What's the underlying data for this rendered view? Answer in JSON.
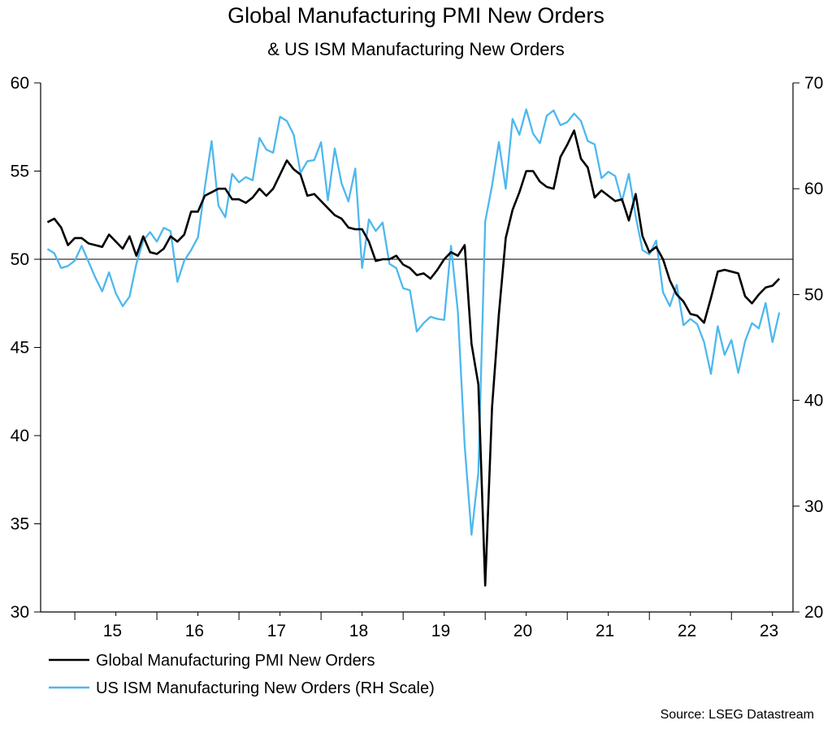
{
  "chart_data": {
    "type": "line",
    "title": "Global Manufacturing PMI New Orders",
    "subtitle": "& US ISM Manufacturing New Orders",
    "source": "Source: LSEG Datastream",
    "x_labels": [
      "15",
      "16",
      "17",
      "18",
      "19",
      "20",
      "21",
      "22",
      "23"
    ],
    "x_start": "2014-09",
    "y_left": {
      "min": 30,
      "max": 60,
      "ticks": [
        30,
        35,
        40,
        45,
        50,
        55,
        60
      ]
    },
    "y_right": {
      "min": 20,
      "max": 70,
      "ticks": [
        20,
        30,
        40,
        50,
        60,
        70
      ]
    },
    "reference_line": 50,
    "legend_position": "bottom-left",
    "series": [
      {
        "name": "Global Manufacturing PMI New Orders",
        "axis": "left",
        "color": "#000000",
        "values": [
          52.1,
          52.3,
          51.8,
          50.8,
          51.2,
          51.2,
          50.9,
          50.8,
          50.7,
          51.4,
          51.0,
          50.6,
          51.3,
          50.2,
          51.3,
          50.4,
          50.3,
          50.6,
          51.3,
          51.0,
          51.4,
          52.7,
          52.7,
          53.6,
          53.8,
          54.0,
          54.0,
          53.4,
          53.4,
          53.2,
          53.5,
          54.0,
          53.6,
          54.0,
          54.8,
          55.6,
          55.1,
          54.8,
          53.6,
          53.7,
          53.3,
          52.9,
          52.5,
          52.3,
          51.8,
          51.7,
          51.7,
          51.0,
          49.9,
          50.0,
          50.0,
          50.2,
          49.7,
          49.5,
          49.1,
          49.2,
          48.9,
          49.4,
          50.0,
          50.4,
          50.2,
          50.8,
          45.2,
          42.9,
          31.5,
          41.6,
          46.9,
          51.2,
          52.8,
          53.8,
          55.0,
          55.0,
          54.4,
          54.1,
          54.0,
          55.8,
          56.5,
          57.3,
          55.7,
          55.2,
          53.5,
          53.9,
          53.6,
          53.3,
          53.4,
          52.2,
          53.7,
          51.3,
          50.4,
          50.7,
          50.0,
          48.8,
          48.0,
          47.6,
          46.9,
          46.8,
          46.4,
          47.8,
          49.3,
          49.4,
          49.3,
          49.2,
          47.9,
          47.5,
          48.0,
          48.4,
          48.5,
          48.9
        ]
      },
      {
        "name": "US ISM Manufacturing New Orders (RH Scale)",
        "axis": "right",
        "color": "#4db8ee",
        "values": [
          54.3,
          53.9,
          52.5,
          52.7,
          53.2,
          54.6,
          53.1,
          51.6,
          50.3,
          52.1,
          50.1,
          48.9,
          49.8,
          52.9,
          55.1,
          55.9,
          55.0,
          56.3,
          56.0,
          51.2,
          53.2,
          54.2,
          55.4,
          60.1,
          64.5,
          58.4,
          57.3,
          61.4,
          60.6,
          61.1,
          60.8,
          64.8,
          63.7,
          63.4,
          66.8,
          66.4,
          65.1,
          61.5,
          62.6,
          62.7,
          64.4,
          58.9,
          63.8,
          60.5,
          58.8,
          61.9,
          52.5,
          57.1,
          56.0,
          56.8,
          52.9,
          52.5,
          50.6,
          50.4,
          46.5,
          47.3,
          47.9,
          47.7,
          47.6,
          54.6,
          48.4,
          35.7,
          27.3,
          33.2,
          56.9,
          60.3,
          64.4,
          60.0,
          66.6,
          65.1,
          67.5,
          65.2,
          64.3,
          66.9,
          67.4,
          66.0,
          66.3,
          67.1,
          66.4,
          64.5,
          64.2,
          61.0,
          61.6,
          61.2,
          58.8,
          61.4,
          57.4,
          54.2,
          53.8,
          55.1,
          50.2,
          48.9,
          50.9,
          47.1,
          47.7,
          47.2,
          45.5,
          42.5,
          47.0,
          44.3,
          45.7,
          42.6,
          45.6,
          47.3,
          46.8,
          49.2,
          45.5,
          48.3
        ]
      }
    ]
  }
}
